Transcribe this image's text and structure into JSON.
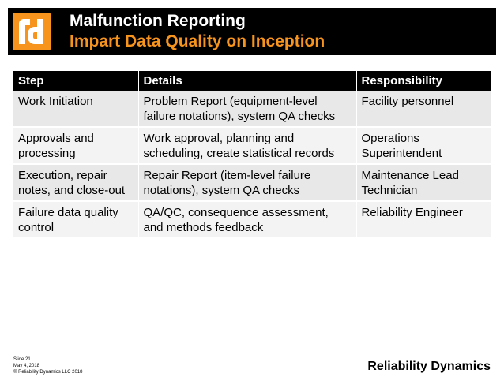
{
  "header": {
    "logo_text": "rd",
    "title": "Malfunction Reporting",
    "subtitle": "Impart Data Quality on Inception"
  },
  "table": {
    "columns": [
      "Step",
      "Details",
      "Responsibility"
    ],
    "rows": [
      [
        "Work Initiation",
        "Problem Report (equipment-level failure notations), system QA checks",
        "Facility personnel"
      ],
      [
        "Approvals and processing",
        "Work approval, planning and scheduling, create statistical records",
        "Operations Superintendent"
      ],
      [
        "Execution, repair notes, and close-out",
        "Repair Report (item-level failure notations), system QA checks",
        "Maintenance Lead Technician"
      ],
      [
        "Failure data quality control",
        "QA/QC, consequence assessment, and methods feedback",
        "Reliability Engineer"
      ]
    ]
  },
  "footer": {
    "slide": "Slide 21",
    "date": "May 4, 2018",
    "copyright": "© Reliability Dynamics LLC 2018",
    "brand": "Reliability Dynamics"
  },
  "colors": {
    "accent": "#f7941d",
    "header_bg": "#000000",
    "row_odd": "#e8e8e8",
    "row_even": "#f3f3f3"
  }
}
